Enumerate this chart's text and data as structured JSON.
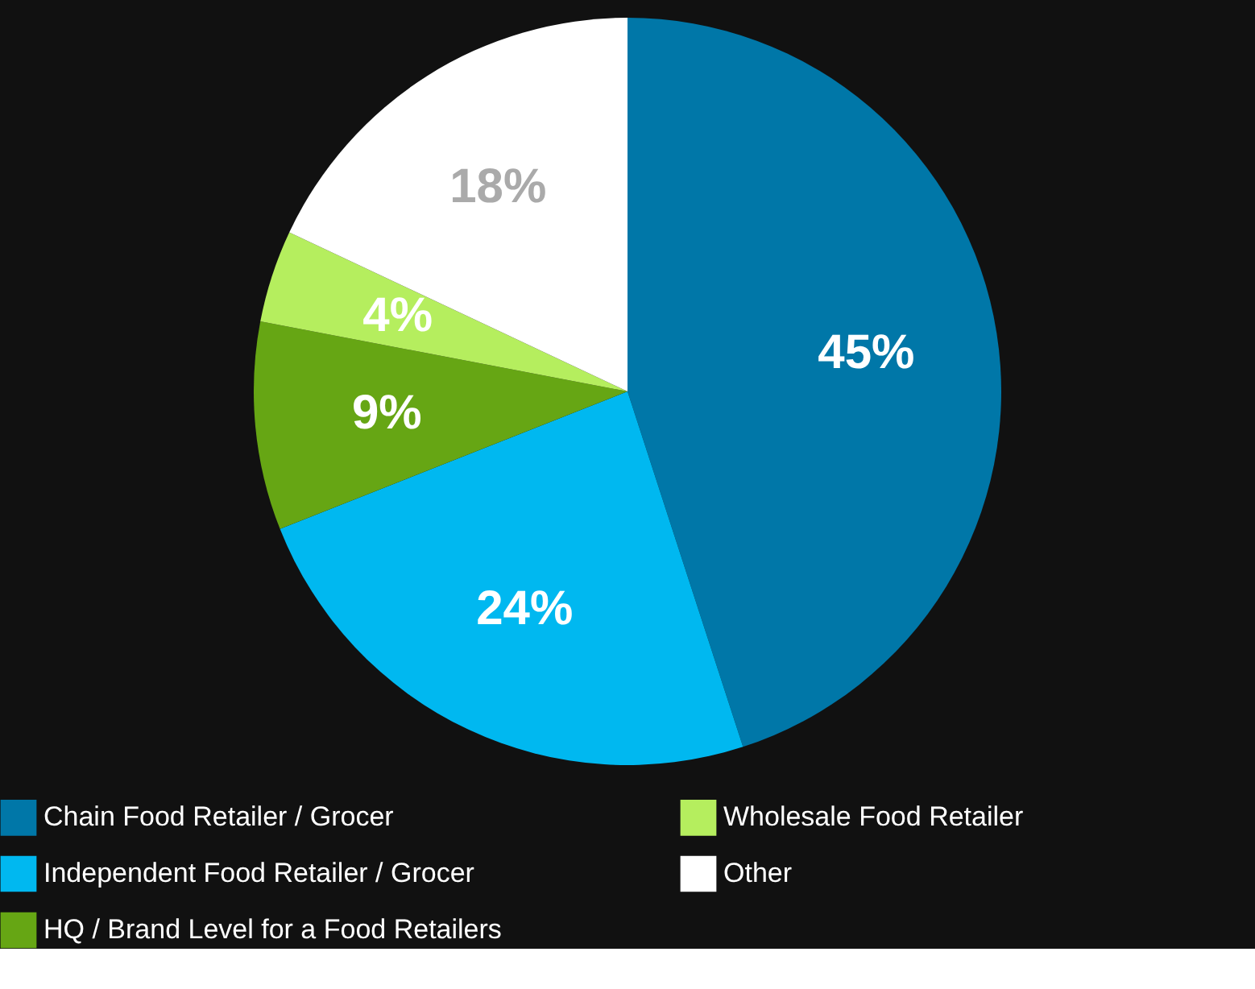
{
  "chart_data": {
    "type": "pie",
    "categories": [
      "Chain Food Retailer / Grocer",
      "Independent Food Retailer / Grocer",
      "HQ / Brand Level for a Food Retailers",
      "Wholesale Food Retailer",
      "Other"
    ],
    "values": [
      45,
      24,
      9,
      4,
      18
    ],
    "value_labels": [
      "45%",
      "24%",
      "9%",
      "4%",
      "18%"
    ],
    "colors": [
      "#0077a8",
      "#00b8f0",
      "#66a614",
      "#b5ee5e",
      "#ffffff"
    ],
    "legend": "bottom"
  }
}
